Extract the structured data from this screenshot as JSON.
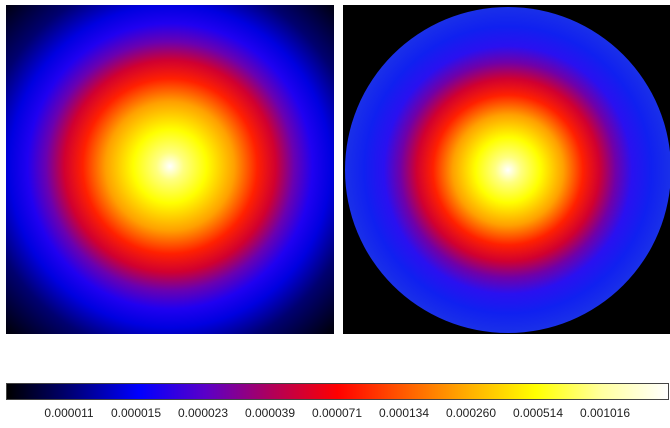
{
  "colormap": {
    "stops": [
      "#000000",
      "#00007a",
      "#0000ff",
      "#5a00c8",
      "#b0005a",
      "#ff0000",
      "#ff5a00",
      "#ffb000",
      "#ffff00",
      "#ffffa0",
      "#ffffff"
    ],
    "tick_labels": [
      "0.000011",
      "0.000015",
      "0.000023",
      "0.000039",
      "0.000071",
      "0.000134",
      "0.000260",
      "0.000514",
      "0.001016"
    ]
  },
  "panels": [
    {
      "id": "left",
      "shape": "square-field"
    },
    {
      "id": "right",
      "shape": "disc"
    }
  ]
}
